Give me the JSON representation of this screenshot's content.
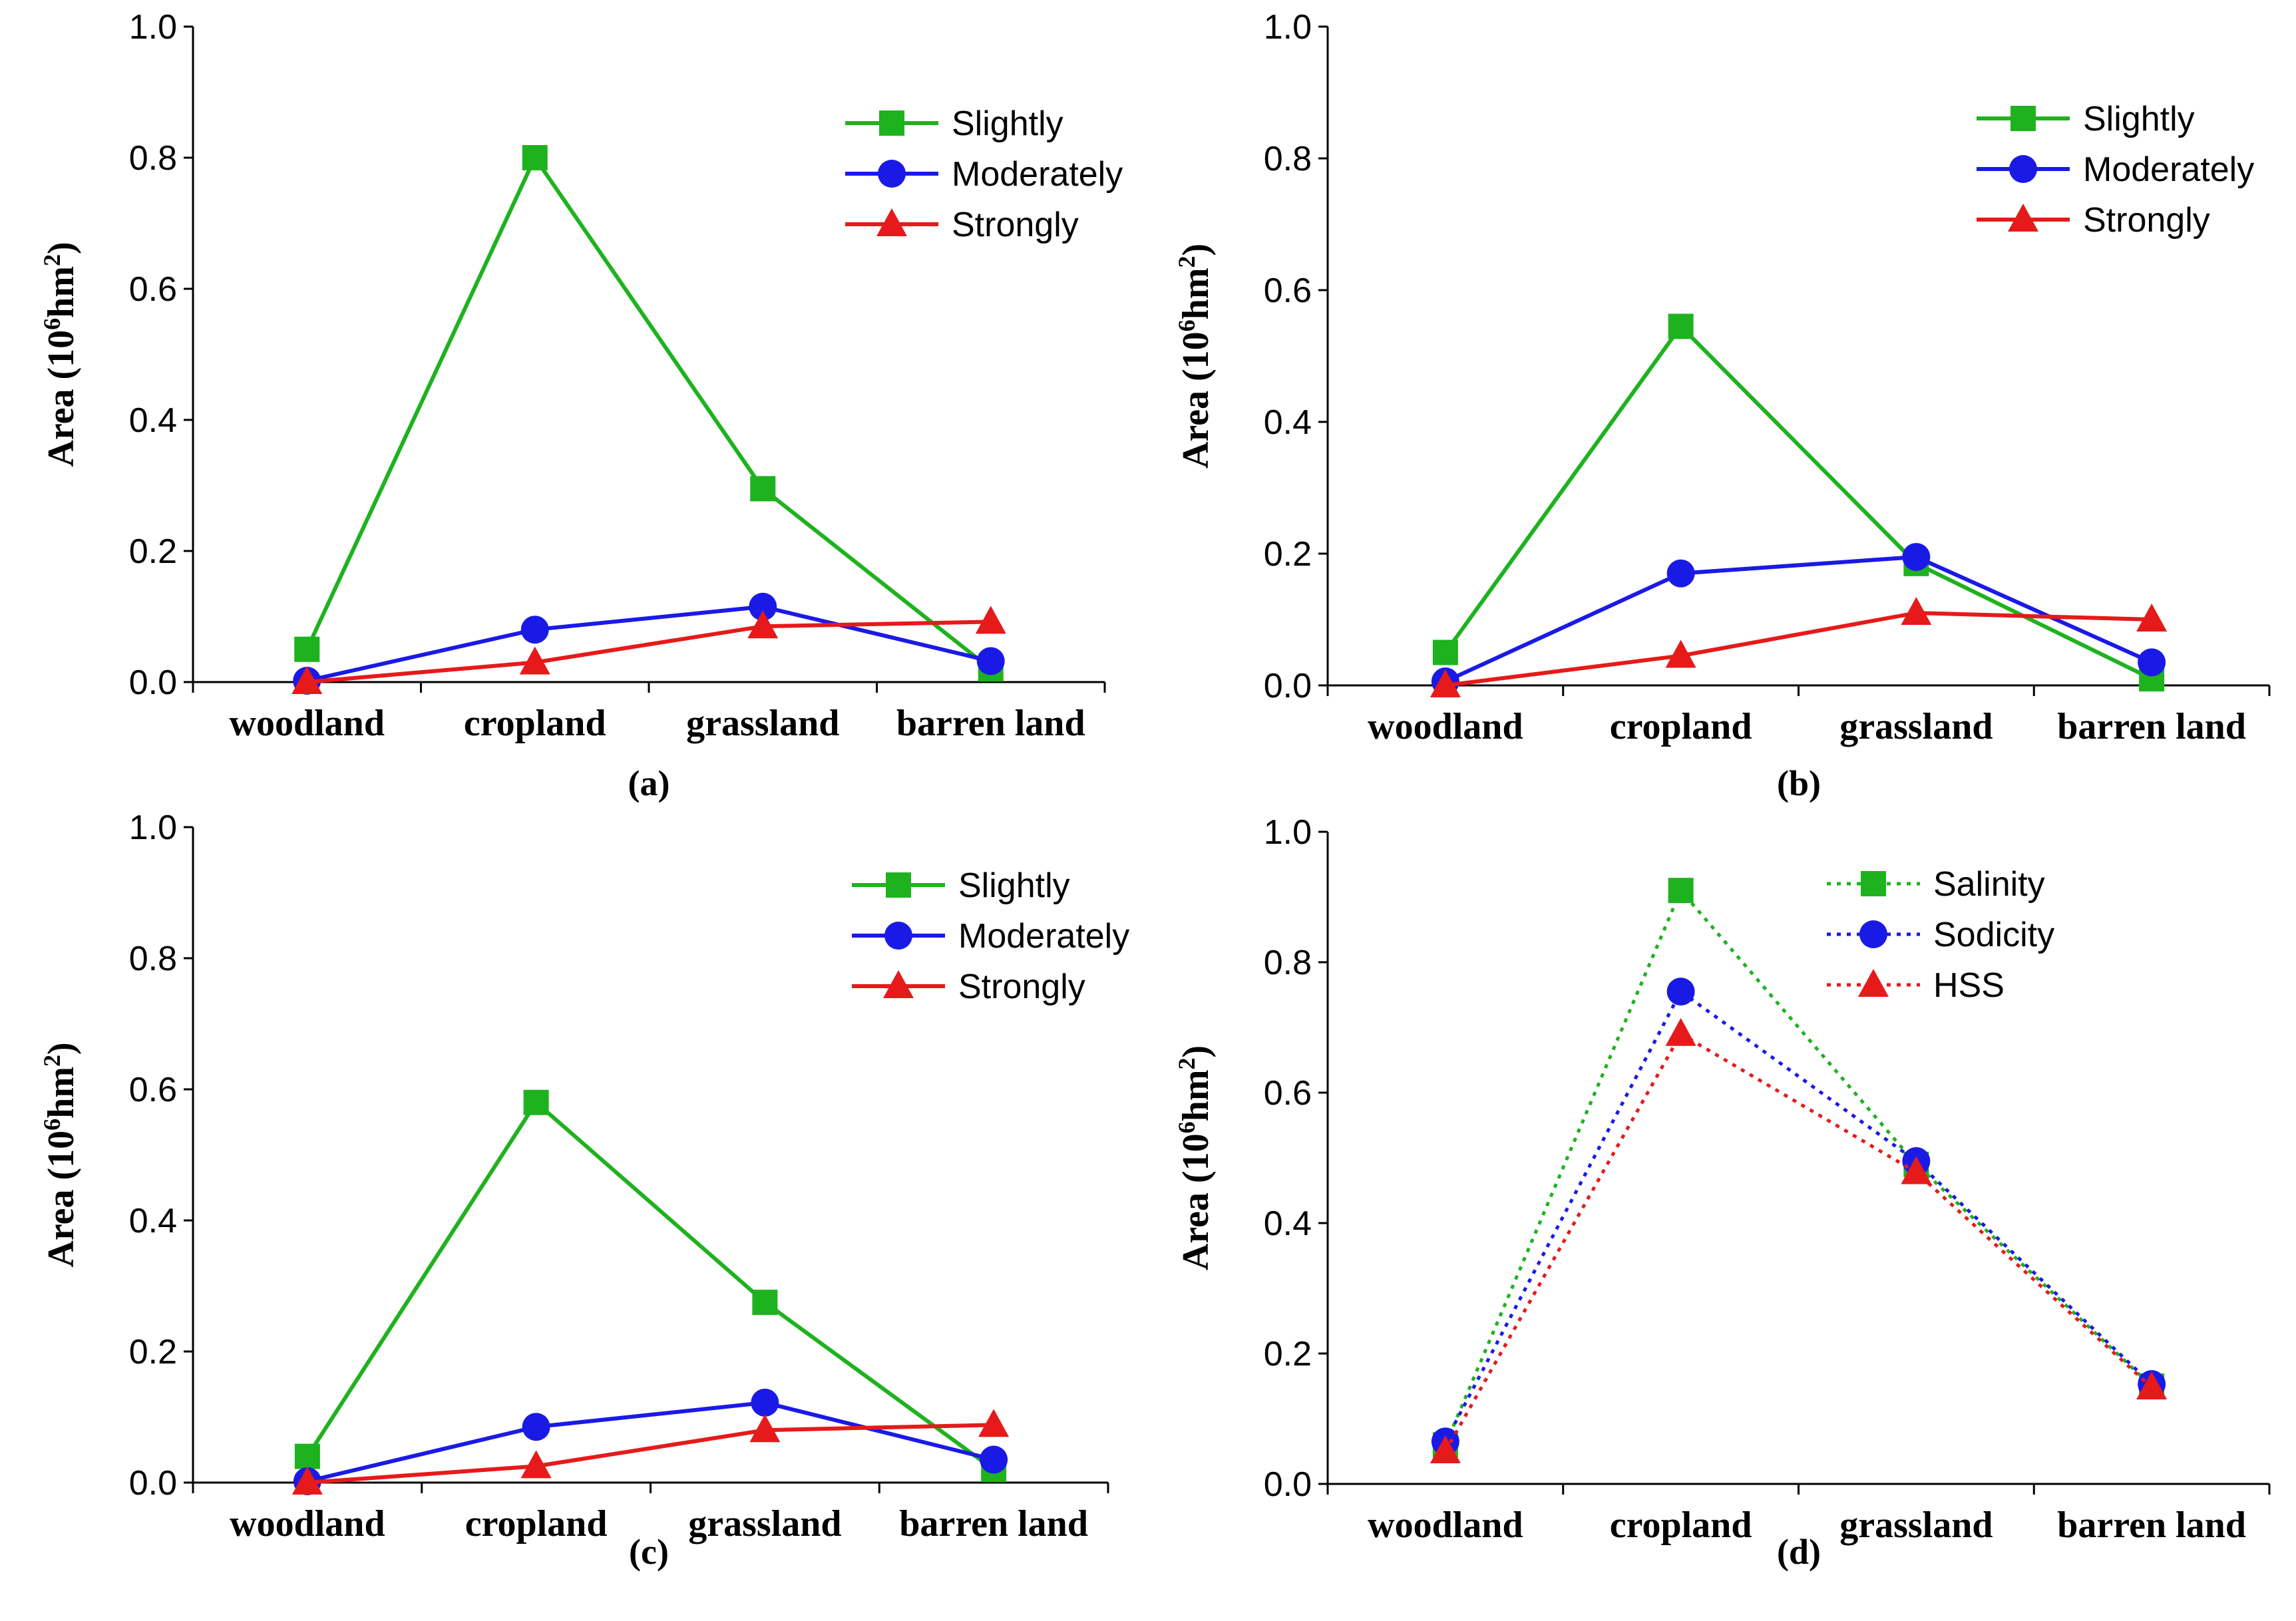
{
  "figure": {
    "ylabel_main": "Area (10",
    "ylabel_sup1": "6",
    "ylabel_mid": "hm",
    "ylabel_sup2": "2",
    "ylabel_end": ")"
  },
  "chart_data": [
    {
      "panel": "(a)",
      "type": "line",
      "categories": [
        "woodland",
        "cropland",
        "grassland",
        "barren land"
      ],
      "ylim": [
        0,
        1.0
      ],
      "yticks": [
        "0.0",
        "0.2",
        "0.4",
        "0.6",
        "0.8",
        "1.0"
      ],
      "ylabel": "Area (10^6 hm^2)",
      "legend_position": "top-right",
      "series": [
        {
          "name": "Slightly",
          "color": "#1fb21f",
          "marker": "square",
          "dash": "solid",
          "values": [
            0.05,
            0.8,
            0.295,
            0.02
          ]
        },
        {
          "name": "Moderately",
          "color": "#1a1ae6",
          "marker": "circle",
          "dash": "solid",
          "values": [
            0.002,
            0.08,
            0.115,
            0.032
          ]
        },
        {
          "name": "Strongly",
          "color": "#e61a1a",
          "marker": "triangle",
          "dash": "solid",
          "values": [
            0.0,
            0.03,
            0.085,
            0.092
          ]
        }
      ]
    },
    {
      "panel": "(b)",
      "type": "line",
      "categories": [
        "woodland",
        "cropland",
        "grassland",
        "barren land"
      ],
      "ylim": [
        0,
        1.0
      ],
      "yticks": [
        "0.0",
        "0.2",
        "0.4",
        "0.6",
        "0.8",
        "1.0"
      ],
      "ylabel": "Area (10^6 hm^2)",
      "legend_position": "top-right",
      "series": [
        {
          "name": "Slightly",
          "color": "#1fb21f",
          "marker": "square",
          "dash": "solid",
          "values": [
            0.05,
            0.545,
            0.185,
            0.01
          ]
        },
        {
          "name": "Moderately",
          "color": "#1a1ae6",
          "marker": "circle",
          "dash": "solid",
          "values": [
            0.006,
            0.17,
            0.195,
            0.035
          ]
        },
        {
          "name": "Strongly",
          "color": "#e61a1a",
          "marker": "triangle",
          "dash": "solid",
          "values": [
            0.0,
            0.045,
            0.11,
            0.1
          ]
        }
      ]
    },
    {
      "panel": "(c)",
      "type": "line",
      "categories": [
        "woodland",
        "cropland",
        "grassland",
        "barren land"
      ],
      "ylim": [
        0,
        1.0
      ],
      "yticks": [
        "0.0",
        "0.2",
        "0.4",
        "0.6",
        "0.8",
        "1.0"
      ],
      "ylabel": "Area (10^6 hm^2)",
      "legend_position": "top-right",
      "series": [
        {
          "name": "Slightly",
          "color": "#1fb21f",
          "marker": "square",
          "dash": "solid",
          "values": [
            0.04,
            0.58,
            0.275,
            0.02
          ]
        },
        {
          "name": "Moderately",
          "color": "#1a1ae6",
          "marker": "circle",
          "dash": "solid",
          "values": [
            0.002,
            0.085,
            0.122,
            0.035
          ]
        },
        {
          "name": "Strongly",
          "color": "#e61a1a",
          "marker": "triangle",
          "dash": "solid",
          "values": [
            0.0,
            0.025,
            0.08,
            0.088
          ]
        }
      ]
    },
    {
      "panel": "(d)",
      "type": "line",
      "categories": [
        "woodland",
        "cropland",
        "grassland",
        "barren land"
      ],
      "ylim": [
        0,
        1.0
      ],
      "yticks": [
        "0.0",
        "0.2",
        "0.4",
        "0.6",
        "0.8",
        "1.0"
      ],
      "ylabel": "Area (10^6 hm^2)",
      "legend_position": "top-right",
      "series": [
        {
          "name": "Salinity",
          "color": "#1fb21f",
          "marker": "square",
          "dash": "dotted",
          "values": [
            0.06,
            0.91,
            0.49,
            0.15
          ]
        },
        {
          "name": "Sodicity",
          "color": "#1a1ae6",
          "marker": "circle",
          "dash": "dotted",
          "values": [
            0.065,
            0.755,
            0.495,
            0.153
          ]
        },
        {
          "name": "HSS",
          "color": "#e61a1a",
          "marker": "triangle",
          "dash": "dotted",
          "values": [
            0.05,
            0.69,
            0.478,
            0.148
          ]
        }
      ]
    }
  ]
}
